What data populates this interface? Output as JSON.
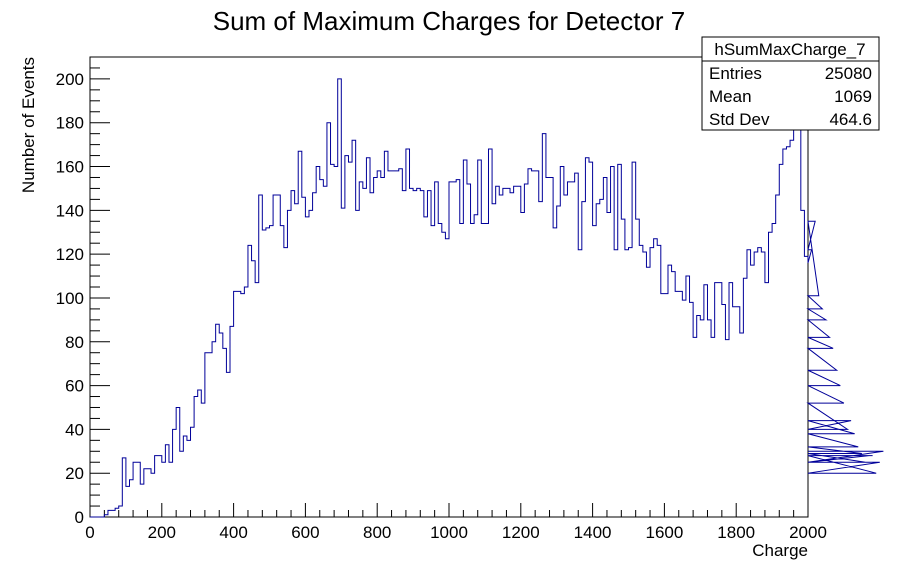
{
  "chart_data": {
    "type": "histogram",
    "title": "Sum of Maximum Charges for Detector 7",
    "xlabel": "Charge",
    "ylabel": "Number of Events",
    "xlim": [
      0,
      2000
    ],
    "ylim": [
      0,
      210
    ],
    "x_ticks": [
      0,
      200,
      400,
      600,
      800,
      1000,
      1200,
      1400,
      1600,
      1800,
      2000
    ],
    "y_ticks": [
      0,
      20,
      40,
      60,
      80,
      100,
      120,
      140,
      160,
      180,
      200
    ],
    "bin_width": 10,
    "series_color": "#000099",
    "stats_box": {
      "name": "hSumMaxCharge_7",
      "rows": [
        {
          "label": "Entries",
          "value": "25080"
        },
        {
          "label": "Mean",
          "value": "1069"
        },
        {
          "label": "Std Dev",
          "value": "464.6"
        }
      ]
    },
    "values": [
      0,
      0,
      0,
      0,
      1,
      3,
      3,
      4,
      5,
      27,
      14,
      17,
      25,
      25,
      15,
      22,
      22,
      20,
      28,
      28,
      25,
      33,
      25,
      40,
      50,
      30,
      37,
      35,
      41,
      55,
      58,
      52,
      75,
      75,
      80,
      88,
      84,
      77,
      66,
      87,
      103,
      103,
      102,
      105,
      124,
      117,
      107,
      147,
      131,
      132,
      133,
      147,
      147,
      133,
      123,
      140,
      149,
      143,
      167,
      146,
      137,
      140,
      148,
      160,
      154,
      151,
      180,
      161,
      160,
      200,
      141,
      165,
      162,
      172,
      140,
      153,
      150,
      164,
      148,
      155,
      158,
      155,
      167,
      158,
      158,
      158,
      159,
      149,
      168,
      150,
      149,
      150,
      149,
      137,
      149,
      133,
      153,
      134,
      130,
      127,
      153,
      153,
      154,
      134,
      163,
      152,
      134,
      138,
      163,
      134,
      134,
      168,
      143,
      151,
      147,
      150,
      150,
      148,
      151,
      151,
      139,
      152,
      159,
      158,
      158,
      144,
      175,
      155,
      155,
      132,
      142,
      160,
      147,
      153,
      153,
      157,
      122,
      144,
      164,
      162,
      133,
      143,
      145,
      155,
      139,
      160,
      122,
      161,
      136,
      122,
      123,
      162,
      136,
      124,
      121,
      114,
      123,
      127,
      124,
      102,
      102,
      115,
      112,
      103,
      103,
      99,
      110,
      98,
      82,
      92,
      90,
      106,
      90,
      82,
      107,
      107,
      97,
      81,
      107,
      96,
      96,
      84,
      109,
      122,
      115,
      121,
      123,
      121,
      107,
      130,
      134,
      147,
      161,
      168,
      169,
      172,
      187,
      185,
      140,
      119,
      116,
      122,
      135,
      101,
      95,
      90,
      82,
      77,
      67,
      60,
      52,
      40,
      44,
      38,
      32,
      29,
      25,
      28,
      28,
      20,
      25,
      30
    ]
  }
}
